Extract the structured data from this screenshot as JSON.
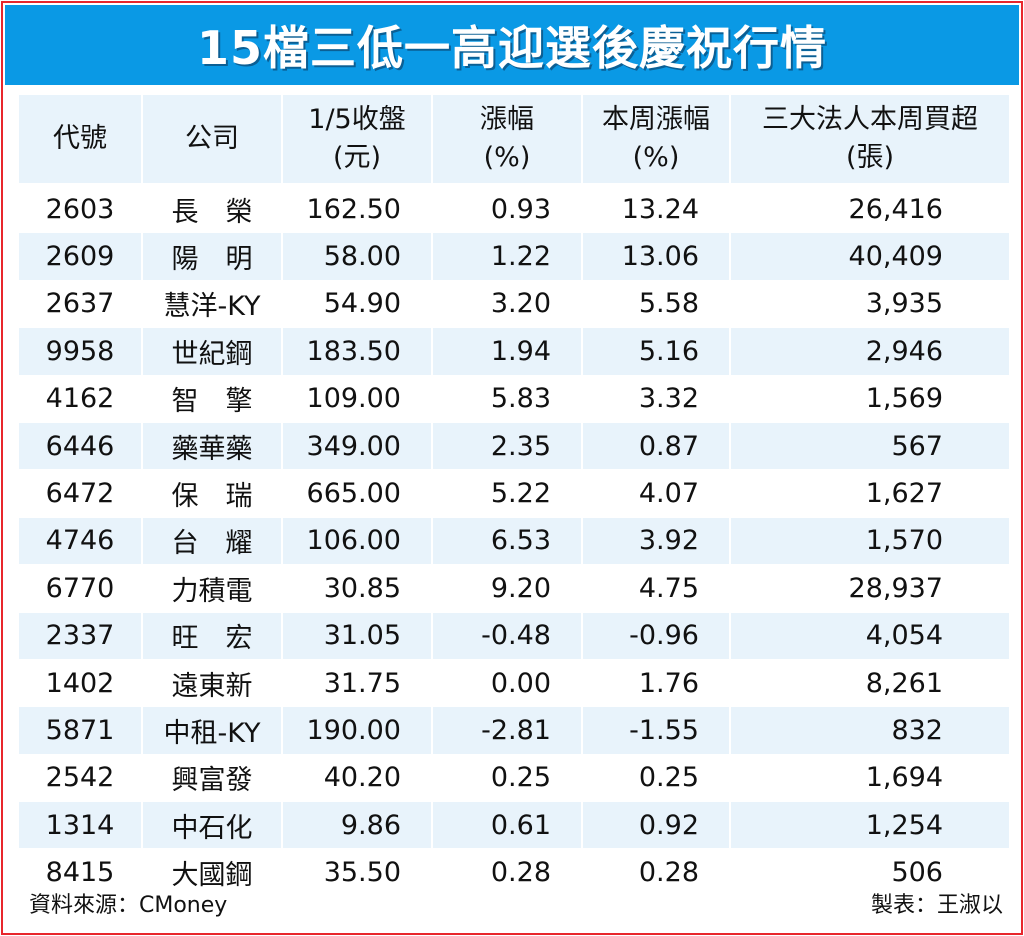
{
  "title": "15檔三低一高迎選後慶祝行情",
  "headers": [
    {
      "line1": "代號",
      "line2": ""
    },
    {
      "line1": "公司",
      "line2": ""
    },
    {
      "line1": "1/5收盤",
      "line2": "(元)"
    },
    {
      "line1": "漲幅",
      "line2": "(%)"
    },
    {
      "line1": "本周漲幅",
      "line2": "(%)"
    },
    {
      "line1": "三大法人本周買超",
      "line2": "(張)"
    }
  ],
  "rows": [
    {
      "code": "2603",
      "name": "長　榮",
      "close": "162.50",
      "change": "0.93",
      "week_change": "13.24",
      "net_buy": "26,416"
    },
    {
      "code": "2609",
      "name": "陽　明",
      "close": "58.00",
      "change": "1.22",
      "week_change": "13.06",
      "net_buy": "40,409"
    },
    {
      "code": "2637",
      "name": "慧洋-KY",
      "close": "54.90",
      "change": "3.20",
      "week_change": "5.58",
      "net_buy": "3,935"
    },
    {
      "code": "9958",
      "name": "世紀鋼",
      "close": "183.50",
      "change": "1.94",
      "week_change": "5.16",
      "net_buy": "2,946"
    },
    {
      "code": "4162",
      "name": "智　擎",
      "close": "109.00",
      "change": "5.83",
      "week_change": "3.32",
      "net_buy": "1,569"
    },
    {
      "code": "6446",
      "name": "藥華藥",
      "close": "349.00",
      "change": "2.35",
      "week_change": "0.87",
      "net_buy": "567"
    },
    {
      "code": "6472",
      "name": "保　瑞",
      "close": "665.00",
      "change": "5.22",
      "week_change": "4.07",
      "net_buy": "1,627"
    },
    {
      "code": "4746",
      "name": "台　耀",
      "close": "106.00",
      "change": "6.53",
      "week_change": "3.92",
      "net_buy": "1,570"
    },
    {
      "code": "6770",
      "name": "力積電",
      "close": "30.85",
      "change": "9.20",
      "week_change": "4.75",
      "net_buy": "28,937"
    },
    {
      "code": "2337",
      "name": "旺　宏",
      "close": "31.05",
      "change": "-0.48",
      "week_change": "-0.96",
      "net_buy": "4,054"
    },
    {
      "code": "1402",
      "name": "遠東新",
      "close": "31.75",
      "change": "0.00",
      "week_change": "1.76",
      "net_buy": "8,261"
    },
    {
      "code": "5871",
      "name": "中租-KY",
      "close": "190.00",
      "change": "-2.81",
      "week_change": "-1.55",
      "net_buy": "832"
    },
    {
      "code": "2542",
      "name": "興富發",
      "close": "40.20",
      "change": "0.25",
      "week_change": "0.25",
      "net_buy": "1,694"
    },
    {
      "code": "1314",
      "name": "中石化",
      "close": "9.86",
      "change": "0.61",
      "week_change": "0.92",
      "net_buy": "1,254"
    },
    {
      "code": "8415",
      "name": "大國鋼",
      "close": "35.50",
      "change": "0.28",
      "week_change": "0.28",
      "net_buy": "506"
    }
  ],
  "footer": {
    "source": "資料來源：CMoney",
    "maker": "製表：王淑以"
  },
  "colors": {
    "banner": "#0a99e5",
    "border": "#e8262c",
    "stripe": "#e8f3fb"
  }
}
